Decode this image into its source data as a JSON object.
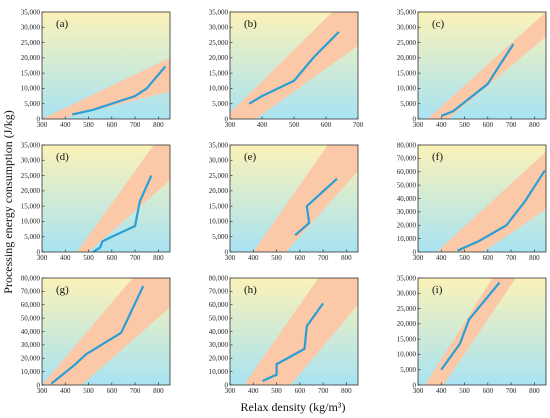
{
  "xlabel": "Relax density (kg/m³)",
  "ylabel": "Processing energy consumption (J/kg)",
  "colors": {
    "bg_top": "#fbf2b8",
    "bg_bottom": "#a8e3f2",
    "band": "#fbc8a8",
    "line": "#2a9fd6"
  },
  "chart_data": [
    {
      "type": "line",
      "panel": "(a)",
      "xlim": [
        300,
        850
      ],
      "ylim": [
        0,
        35000
      ],
      "yticks": [
        "0",
        "5,000",
        "10,000",
        "15,000",
        "20,000",
        "25,000",
        "30,000",
        "35,000"
      ],
      "xticks": [
        "300",
        "400",
        "500",
        "600",
        "700",
        "800"
      ],
      "x": [
        430,
        520,
        600,
        700,
        750,
        830
      ],
      "y": [
        1500,
        3000,
        5000,
        7500,
        10000,
        17200
      ],
      "band_lower": [
        [
          380,
          0
        ],
        [
          850,
          9000
        ]
      ],
      "band_upper": [
        [
          300,
          0
        ],
        [
          850,
          20000
        ]
      ]
    },
    {
      "type": "line",
      "panel": "(b)",
      "xlim": [
        300,
        700
      ],
      "ylim": [
        0,
        35000
      ],
      "yticks": [
        "0",
        "5,000",
        "10,000",
        "15,000",
        "20,000",
        "25,000",
        "30,000",
        "35,000"
      ],
      "xticks": [
        "300",
        "400",
        "500",
        "600",
        "700"
      ],
      "x": [
        360,
        400,
        500,
        560,
        640
      ],
      "y": [
        5000,
        7500,
        12500,
        20000,
        28500
      ],
      "band_lower": [
        [
          380,
          0
        ],
        [
          700,
          24000
        ]
      ],
      "band_upper": [
        [
          300,
          2000
        ],
        [
          620,
          35000
        ]
      ]
    },
    {
      "type": "line",
      "panel": "(c)",
      "xlim": [
        300,
        850
      ],
      "ylim": [
        0,
        35000
      ],
      "yticks": [
        "0",
        "5,000",
        "10,000",
        "15,000",
        "20,000",
        "25,000",
        "30,000",
        "35,000"
      ],
      "xticks": [
        "300",
        "400",
        "500",
        "600",
        "700",
        "800"
      ],
      "x": [
        400,
        450,
        600,
        650,
        710
      ],
      "y": [
        1000,
        2500,
        11500,
        17500,
        24500
      ],
      "band_lower": [
        [
          430,
          0
        ],
        [
          850,
          27000
        ]
      ],
      "band_upper": [
        [
          340,
          0
        ],
        [
          850,
          35000
        ]
      ]
    },
    {
      "type": "line",
      "panel": "(d)",
      "xlim": [
        300,
        850
      ],
      "ylim": [
        0,
        35000
      ],
      "yticks": [
        "0",
        "5,000",
        "10,000",
        "15,000",
        "20,000",
        "25,000",
        "30,000",
        "35,000"
      ],
      "xticks": [
        "300",
        "400",
        "500",
        "600",
        "700",
        "800"
      ],
      "x": [
        520,
        550,
        560,
        600,
        700,
        720,
        770
      ],
      "y": [
        0,
        1500,
        3500,
        5000,
        8500,
        16500,
        25000
      ],
      "band_lower": [
        [
          500,
          0
        ],
        [
          850,
          23500
        ]
      ],
      "band_upper": [
        [
          450,
          0
        ],
        [
          780,
          35000
        ]
      ]
    },
    {
      "type": "line",
      "panel": "(e)",
      "xlim": [
        300,
        850
      ],
      "ylim": [
        0,
        35000
      ],
      "yticks": [
        "0",
        "5,000",
        "10,000",
        "15,000",
        "20,000",
        "25,000",
        "30,000",
        "35,000"
      ],
      "xticks": [
        "300",
        "400",
        "500",
        "600",
        "700",
        "800"
      ],
      "x": [
        580,
        640,
        630,
        760
      ],
      "y": [
        5500,
        9500,
        15000,
        24000
      ],
      "band_lower": [
        [
          540,
          0
        ],
        [
          850,
          26500
        ]
      ],
      "band_upper": [
        [
          400,
          0
        ],
        [
          720,
          35000
        ]
      ]
    },
    {
      "type": "line",
      "panel": "(f)",
      "xlim": [
        300,
        850
      ],
      "ylim": [
        0,
        80000
      ],
      "yticks": [
        "0",
        "10,000",
        "20,000",
        "30,000",
        "40,000",
        "50,000",
        "60,000",
        "70,000",
        "80,000"
      ],
      "xticks": [
        "300",
        "400",
        "500",
        "600",
        "700",
        "800"
      ],
      "x": [
        470,
        560,
        680,
        760,
        845
      ],
      "y": [
        1000,
        8000,
        20000,
        38000,
        61000
      ],
      "band_lower": [
        [
          580,
          0
        ],
        [
          850,
          32000
        ]
      ],
      "band_upper": [
        [
          380,
          0
        ],
        [
          850,
          75000
        ]
      ]
    },
    {
      "type": "line",
      "panel": "(g)",
      "xlim": [
        300,
        850
      ],
      "ylim": [
        0,
        80000
      ],
      "yticks": [
        "0",
        "10,000",
        "20,000",
        "30,000",
        "40,000",
        "50,000",
        "60,000",
        "70,000",
        "80,000"
      ],
      "xticks": [
        "300",
        "400",
        "500",
        "600",
        "700",
        "800"
      ],
      "x": [
        340,
        440,
        490,
        640,
        735
      ],
      "y": [
        1000,
        15000,
        23000,
        39000,
        74000
      ],
      "band_lower": [
        [
          470,
          0
        ],
        [
          850,
          58000
        ]
      ],
      "band_upper": [
        [
          300,
          0
        ],
        [
          690,
          80000
        ]
      ]
    },
    {
      "type": "line",
      "panel": "(h)",
      "xlim": [
        300,
        850
      ],
      "ylim": [
        0,
        80000
      ],
      "yticks": [
        "0",
        "10,000",
        "20,000",
        "30,000",
        "40,000",
        "50,000",
        "60,000",
        "70,000",
        "80,000"
      ],
      "xticks": [
        "300",
        "400",
        "500",
        "600",
        "700",
        "800"
      ],
      "x": [
        440,
        490,
        500,
        500,
        620,
        630,
        700
      ],
      "y": [
        3000,
        7000,
        7500,
        15500,
        27000,
        44000,
        61000
      ],
      "band_lower": [
        [
          560,
          0
        ],
        [
          850,
          60000
        ]
      ],
      "band_upper": [
        [
          360,
          0
        ],
        [
          680,
          80000
        ]
      ]
    },
    {
      "type": "line",
      "panel": "(i)",
      "xlim": [
        300,
        850
      ],
      "ylim": [
        0,
        35000
      ],
      "yticks": [
        "0",
        "5,000",
        "10,000",
        "15,000",
        "20,000",
        "25,000",
        "30,000",
        "35,000"
      ],
      "xticks": [
        "300",
        "400",
        "500",
        "600",
        "700",
        "800"
      ],
      "x": [
        400,
        480,
        520,
        650
      ],
      "y": [
        5000,
        13500,
        21500,
        33500
      ],
      "band_lower": [
        [
          410,
          0
        ],
        [
          720,
          35000
        ]
      ],
      "band_upper": [
        [
          330,
          0
        ],
        [
          620,
          35000
        ]
      ]
    }
  ]
}
